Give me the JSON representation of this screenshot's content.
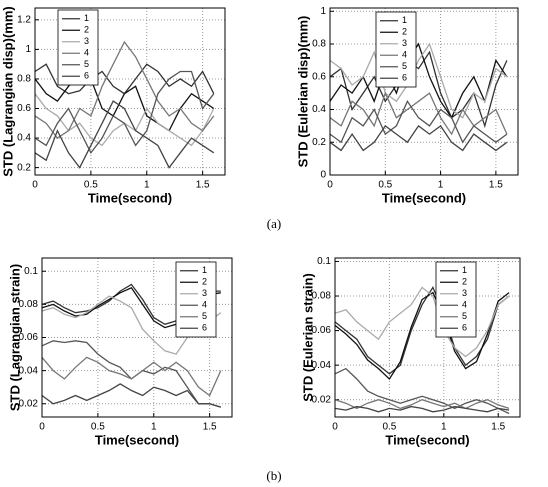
{
  "chart_data": [
    {
      "type": "line",
      "xlabel": "Time(second)",
      "ylabel": "STD (Lagrangian disp)(mm)",
      "x": [
        0,
        0.1,
        0.2,
        0.3,
        0.4,
        0.5,
        0.6,
        0.7,
        0.8,
        0.9,
        1,
        1.1,
        1.2,
        1.3,
        1.4,
        1.5,
        1.6
      ],
      "xlim": [
        0,
        1.7
      ],
      "xticks": [
        0,
        0.5,
        1,
        1.5
      ],
      "ylim": [
        0.15,
        1.28
      ],
      "yticks": [
        0.2,
        0.4,
        0.6,
        0.8,
        1,
        1.2
      ],
      "grid": true,
      "series": [
        {
          "name": "1",
          "color": "#333333",
          "values": [
            0.85,
            0.9,
            0.75,
            0.7,
            0.72,
            0.8,
            0.85,
            0.75,
            0.7,
            0.8,
            0.9,
            0.85,
            0.75,
            0.8,
            0.75,
            0.85,
            0.7
          ]
        },
        {
          "name": "2",
          "color": "#111111",
          "values": [
            0.8,
            0.7,
            0.65,
            0.75,
            0.85,
            0.8,
            0.6,
            0.55,
            0.7,
            0.75,
            0.55,
            0.5,
            0.45,
            0.6,
            0.7,
            0.65,
            0.6
          ]
        },
        {
          "name": "3",
          "color": "#aaaaaa",
          "values": [
            0.7,
            0.6,
            0.55,
            0.45,
            0.5,
            0.4,
            0.35,
            0.45,
            0.5,
            0.45,
            0.6,
            0.5,
            0.45,
            0.4,
            0.35,
            0.45,
            0.6
          ]
        },
        {
          "name": "4",
          "color": "#777777",
          "values": [
            0.55,
            0.5,
            0.4,
            0.45,
            0.6,
            0.55,
            0.75,
            0.9,
            1.05,
            0.95,
            0.8,
            0.65,
            0.55,
            0.6,
            0.5,
            0.45,
            0.55
          ]
        },
        {
          "name": "5",
          "color": "#555555",
          "values": [
            0.4,
            0.35,
            0.5,
            0.6,
            0.45,
            0.3,
            0.4,
            0.55,
            0.5,
            0.35,
            0.45,
            0.7,
            0.8,
            0.85,
            0.85,
            0.6,
            0.7
          ]
        },
        {
          "name": "6",
          "color": "#444444",
          "values": [
            0.3,
            0.25,
            0.45,
            0.3,
            0.2,
            0.35,
            0.5,
            0.65,
            0.6,
            0.45,
            0.4,
            0.35,
            0.2,
            0.3,
            0.4,
            0.35,
            0.3
          ]
        }
      ]
    },
    {
      "type": "line",
      "xlabel": "Time(second)",
      "ylabel": "STD (Eulerian disp)(mm)",
      "x": [
        0,
        0.1,
        0.2,
        0.3,
        0.4,
        0.5,
        0.6,
        0.7,
        0.8,
        0.9,
        1,
        1.1,
        1.2,
        1.3,
        1.4,
        1.5,
        1.6
      ],
      "xlim": [
        0,
        1.7
      ],
      "xticks": [
        0,
        0.5,
        1,
        1.5
      ],
      "ylim": [
        0,
        1.02
      ],
      "yticks": [
        0,
        0.2,
        0.4,
        0.6,
        0.8,
        1
      ],
      "grid": true,
      "series": [
        {
          "name": "1",
          "color": "#333333",
          "values": [
            0.6,
            0.65,
            0.4,
            0.5,
            0.6,
            0.45,
            0.55,
            0.7,
            0.65,
            0.75,
            0.5,
            0.35,
            0.4,
            0.5,
            0.3,
            0.55,
            0.7
          ]
        },
        {
          "name": "2",
          "color": "#111111",
          "values": [
            0.45,
            0.55,
            0.5,
            0.6,
            0.45,
            0.65,
            0.5,
            0.7,
            0.8,
            0.6,
            0.45,
            0.35,
            0.5,
            0.6,
            0.45,
            0.7,
            0.6
          ]
        },
        {
          "name": "3",
          "color": "#aaaaaa",
          "values": [
            0.7,
            0.65,
            0.55,
            0.6,
            0.75,
            0.5,
            0.45,
            0.55,
            0.7,
            0.8,
            0.6,
            0.4,
            0.35,
            0.5,
            0.45,
            0.65,
            0.6
          ]
        },
        {
          "name": "4",
          "color": "#777777",
          "values": [
            0.35,
            0.3,
            0.45,
            0.4,
            0.3,
            0.5,
            0.35,
            0.4,
            0.45,
            0.5,
            0.35,
            0.25,
            0.4,
            0.3,
            0.35,
            0.4,
            0.25
          ]
        },
        {
          "name": "5",
          "color": "#555555",
          "values": [
            0.25,
            0.2,
            0.35,
            0.3,
            0.4,
            0.25,
            0.3,
            0.45,
            0.35,
            0.3,
            0.4,
            0.35,
            0.2,
            0.3,
            0.25,
            0.2,
            0.25
          ]
        },
        {
          "name": "6",
          "color": "#444444",
          "values": [
            0.2,
            0.15,
            0.25,
            0.15,
            0.2,
            0.3,
            0.25,
            0.2,
            0.3,
            0.25,
            0.3,
            0.2,
            0.15,
            0.25,
            0.2,
            0.15,
            0.2
          ]
        }
      ]
    },
    {
      "type": "line",
      "xlabel": "Time(second)",
      "ylabel": "STD (Lagrangian strain)",
      "x": [
        0,
        0.1,
        0.2,
        0.3,
        0.4,
        0.5,
        0.6,
        0.7,
        0.8,
        0.9,
        1,
        1.1,
        1.2,
        1.3,
        1.4,
        1.5,
        1.6
      ],
      "xlim": [
        0,
        1.7
      ],
      "xticks": [
        0,
        0.5,
        1,
        1.5
      ],
      "ylim": [
        0.012,
        0.108
      ],
      "yticks": [
        0.02,
        0.04,
        0.06,
        0.08,
        0.1
      ],
      "grid": true,
      "series": [
        {
          "name": "1",
          "color": "#333333",
          "values": [
            0.08,
            0.082,
            0.078,
            0.075,
            0.076,
            0.078,
            0.082,
            0.088,
            0.092,
            0.083,
            0.072,
            0.068,
            0.07,
            0.078,
            0.085,
            0.088,
            0.088
          ]
        },
        {
          "name": "2",
          "color": "#111111",
          "values": [
            0.078,
            0.08,
            0.076,
            0.073,
            0.074,
            0.079,
            0.083,
            0.087,
            0.09,
            0.08,
            0.07,
            0.066,
            0.068,
            0.076,
            0.083,
            0.086,
            0.087
          ]
        },
        {
          "name": "3",
          "color": "#aaaaaa",
          "values": [
            0.076,
            0.078,
            0.074,
            0.072,
            0.075,
            0.08,
            0.085,
            0.082,
            0.078,
            0.065,
            0.058,
            0.052,
            0.05,
            0.06,
            0.065,
            0.07,
            0.075
          ]
        },
        {
          "name": "4",
          "color": "#555555",
          "values": [
            0.055,
            0.058,
            0.057,
            0.058,
            0.057,
            0.05,
            0.045,
            0.042,
            0.035,
            0.04,
            0.038,
            0.042,
            0.04,
            0.03,
            0.02,
            0.02,
            0.018
          ]
        },
        {
          "name": "5",
          "color": "#777777",
          "values": [
            0.048,
            0.04,
            0.035,
            0.042,
            0.048,
            0.045,
            0.04,
            0.038,
            0.035,
            0.04,
            0.045,
            0.04,
            0.045,
            0.04,
            0.03,
            0.025,
            0.04
          ]
        },
        {
          "name": "6",
          "color": "#444444",
          "values": [
            0.025,
            0.02,
            0.022,
            0.025,
            0.022,
            0.025,
            0.028,
            0.032,
            0.028,
            0.025,
            0.03,
            0.028,
            0.025,
            0.028,
            0.02,
            0.02,
            0.018
          ]
        }
      ]
    },
    {
      "type": "line",
      "xlabel": "Time(second)",
      "ylabel": "STD (Eulerian strain)",
      "x": [
        0,
        0.1,
        0.2,
        0.3,
        0.4,
        0.5,
        0.6,
        0.7,
        0.8,
        0.9,
        1,
        1.1,
        1.2,
        1.3,
        1.4,
        1.5,
        1.6
      ],
      "xlim": [
        0,
        1.7
      ],
      "xticks": [
        0,
        0.5,
        1,
        1.5
      ],
      "ylim": [
        0.01,
        0.102
      ],
      "yticks": [
        0.02,
        0.04,
        0.06,
        0.08,
        0.1
      ],
      "grid": true,
      "series": [
        {
          "name": "1",
          "color": "#333333",
          "values": [
            0.065,
            0.06,
            0.055,
            0.045,
            0.04,
            0.035,
            0.04,
            0.06,
            0.075,
            0.085,
            0.07,
            0.05,
            0.04,
            0.045,
            0.055,
            0.075,
            0.08
          ]
        },
        {
          "name": "2",
          "color": "#111111",
          "values": [
            0.063,
            0.058,
            0.052,
            0.043,
            0.038,
            0.032,
            0.042,
            0.062,
            0.078,
            0.082,
            0.068,
            0.048,
            0.038,
            0.042,
            0.058,
            0.077,
            0.082
          ]
        },
        {
          "name": "3",
          "color": "#aaaaaa",
          "values": [
            0.07,
            0.072,
            0.065,
            0.06,
            0.055,
            0.065,
            0.07,
            0.075,
            0.085,
            0.08,
            0.06,
            0.05,
            0.045,
            0.05,
            0.06,
            0.075,
            0.08
          ]
        },
        {
          "name": "4",
          "color": "#555555",
          "values": [
            0.035,
            0.038,
            0.032,
            0.025,
            0.022,
            0.02,
            0.018,
            0.02,
            0.022,
            0.02,
            0.018,
            0.015,
            0.018,
            0.02,
            0.018,
            0.015,
            0.012
          ]
        },
        {
          "name": "5",
          "color": "#777777",
          "values": [
            0.02,
            0.018,
            0.015,
            0.018,
            0.02,
            0.018,
            0.015,
            0.017,
            0.02,
            0.018,
            0.016,
            0.018,
            0.015,
            0.018,
            0.02,
            0.017,
            0.015
          ]
        },
        {
          "name": "6",
          "color": "#444444",
          "values": [
            0.015,
            0.014,
            0.016,
            0.015,
            0.013,
            0.015,
            0.014,
            0.016,
            0.015,
            0.013,
            0.014,
            0.016,
            0.015,
            0.014,
            0.013,
            0.015,
            0.014
          ]
        }
      ]
    }
  ],
  "captions": [
    "(a)",
    "(b)"
  ]
}
